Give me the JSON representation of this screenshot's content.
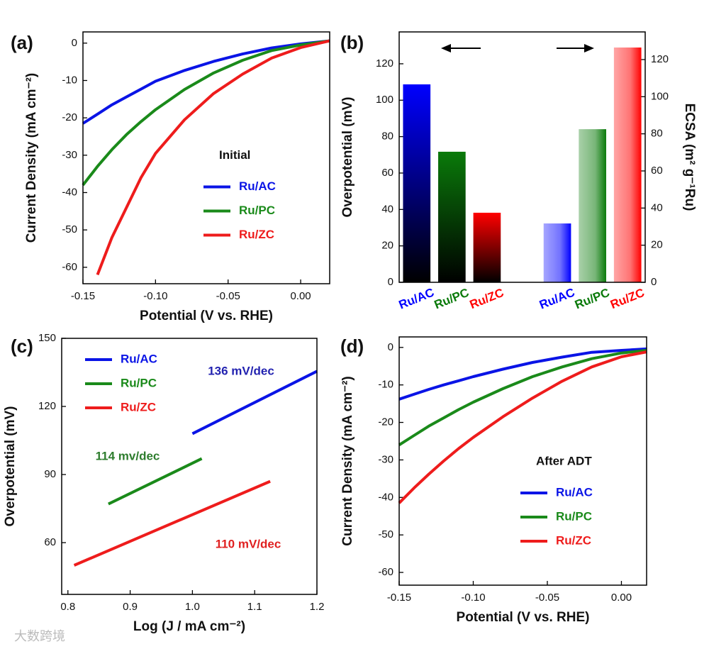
{
  "watermark": "大数跨境",
  "chart_data": [
    {
      "type": "line",
      "panel": "(a)",
      "x": [
        -0.15,
        -0.14,
        -0.13,
        -0.12,
        -0.11,
        -0.1,
        -0.08,
        -0.06,
        -0.04,
        -0.02,
        0,
        0.02
      ],
      "series": [
        {
          "name": "Ru/AC",
          "color": "#0a14e6",
          "values": [
            -21.5,
            -19,
            -16.5,
            -14.4,
            -12.3,
            -10.2,
            -7.3,
            -4.9,
            -2.9,
            -1.3,
            -0.2,
            0.6
          ]
        },
        {
          "name": "Ru/PC",
          "color": "#1a8a1a",
          "values": [
            -38,
            -33,
            -28.5,
            -24.5,
            -21,
            -17.8,
            -12.4,
            -8,
            -4.6,
            -2,
            -0.5,
            0.6
          ]
        },
        {
          "name": "Ru/ZC",
          "color": "#ee1c1c",
          "values": [
            null,
            -62,
            -52,
            -44,
            -36,
            -29.5,
            -20.5,
            -13.5,
            -8.3,
            -4,
            -1.2,
            0.6
          ]
        }
      ],
      "xlim": [
        -0.15,
        0.02
      ],
      "xticks": [
        -0.15,
        {
          "value": -0.1,
          "label": "-0.10"
        },
        -0.05,
        {
          "value": 0,
          "label": "0.00"
        }
      ],
      "ylim": [
        -64.4,
        3
      ],
      "yticks": [
        0,
        -10,
        -20,
        -30,
        -40,
        -50,
        -60
      ],
      "xlabel": "Potential (V vs. RHE)",
      "ylabel": "Current Density (mA cm⁻²)",
      "legend": "center right",
      "legend_title": "Initial"
    },
    {
      "type": "bar",
      "panel": "(b)",
      "categories": [
        "Ru/AC",
        "Ru/PC",
        "Ru/ZC",
        null,
        "Ru/AC",
        "Ru/PC",
        "Ru/ZC"
      ],
      "category_colors": [
        "#0000ff",
        "#0a7a0a",
        "#ff0000",
        null,
        "#0000ff",
        "#0a7a0a",
        "#ff0000"
      ],
      "series": [
        {
          "values": [
            108.7,
            71.7,
            38.2,
            null,
            null,
            null,
            null
          ],
          "fill_style": "fade-to-black"
        },
        {
          "axis": "y2",
          "values": [
            null,
            null,
            null,
            null,
            31.7,
            82.5,
            126.5
          ],
          "fill_style": "fade-to-white"
        }
      ],
      "ylim": [
        0,
        137.5
      ],
      "yticks": [
        0,
        20,
        40,
        60,
        80,
        100,
        120
      ],
      "y2lim": [
        0,
        134.9
      ],
      "y2ticks": [
        0,
        20,
        40,
        60,
        80,
        100,
        120
      ],
      "ylabel": "Overpotential (mV)",
      "y2label": "ECSA (m² g⁻¹Ru)"
    },
    {
      "type": "line",
      "panel": "(c)",
      "series": [
        {
          "name": "Ru/AC",
          "color": "#0a14e6",
          "x": [
            1.0,
            1.2
          ],
          "values": [
            108,
            135.5
          ]
        },
        {
          "name": "Ru/PC",
          "color": "#1a8a1a",
          "x": [
            0.865,
            1.015
          ],
          "values": [
            77,
            97
          ]
        },
        {
          "name": "Ru/ZC",
          "color": "#ee1c1c",
          "x": [
            0.81,
            1.125
          ],
          "values": [
            50,
            87
          ]
        }
      ],
      "annotations": [
        {
          "text": "136 mV/dec",
          "color": "#2222b0"
        },
        {
          "text": "114 mv/dec",
          "color": "#2e7d2e"
        },
        {
          "text": "110 mV/dec",
          "color": "#e02020"
        }
      ],
      "xlim": [
        0.79,
        1.2
      ],
      "xticks": [
        0.8,
        0.9,
        {
          "value": 1,
          "label": "1.0"
        },
        1.1,
        1.2
      ],
      "ylim": [
        37.2,
        150
      ],
      "yticks": [
        60,
        90,
        120,
        150
      ],
      "xlabel": "Log (J / mA cm⁻²)",
      "ylabel": "Overpotential (mV)",
      "legend": "upper left"
    },
    {
      "type": "line",
      "panel": "(d)",
      "x": [
        -0.15,
        -0.14,
        -0.13,
        -0.12,
        -0.11,
        -0.1,
        -0.08,
        -0.06,
        -0.04,
        -0.02,
        0,
        0.017
      ],
      "series": [
        {
          "name": "Ru/AC",
          "color": "#0a14e6",
          "values": [
            -13.8,
            -12.5,
            -11.2,
            -10,
            -8.9,
            -7.8,
            -5.8,
            -4,
            -2.6,
            -1.3,
            -0.8,
            -0.4
          ]
        },
        {
          "name": "Ru/PC",
          "color": "#1a8a1a",
          "values": [
            -26,
            -23.5,
            -21,
            -18.8,
            -16.6,
            -14.6,
            -11,
            -7.8,
            -5.2,
            -3,
            -1.5,
            -0.8
          ]
        },
        {
          "name": "Ru/ZC",
          "color": "#ee1c1c",
          "values": [
            -41.5,
            -37.5,
            -33.8,
            -30.3,
            -27,
            -24,
            -18.5,
            -13.5,
            -9,
            -5.2,
            -2.5,
            -1.2
          ]
        }
      ],
      "xlim": [
        -0.15,
        0.017
      ],
      "xticks": [
        -0.15,
        {
          "value": -0.1,
          "label": "-0.10"
        },
        -0.05,
        {
          "value": 0,
          "label": "0.00"
        }
      ],
      "ylim": [
        -63.4,
        2.8
      ],
      "yticks": [
        0,
        -10,
        -20,
        -30,
        -40,
        -50,
        -60
      ],
      "xlabel": "Potential (V vs. RHE)",
      "ylabel": "Current Density (mA cm⁻²)",
      "legend": "lower right",
      "legend_title": "After ADT"
    }
  ]
}
